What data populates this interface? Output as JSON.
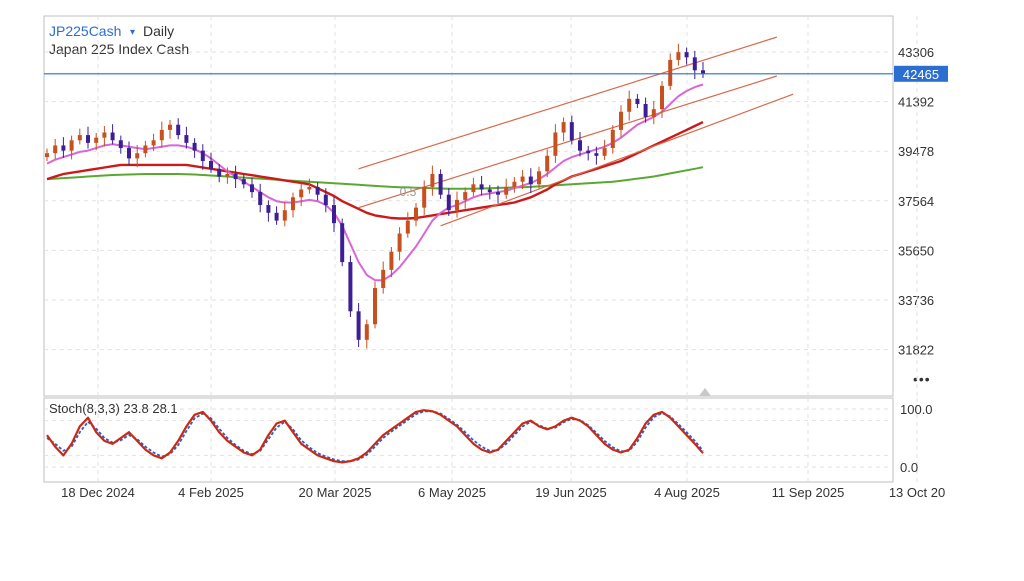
{
  "header": {
    "symbol": "JP225Cash",
    "caret": "▾",
    "timeframe": "Daily",
    "subtitle": "Japan 225 Index Cash"
  },
  "more_menu": "•••",
  "colors": {
    "candle_up": "#c8501e",
    "candle_down": "#3c1e96",
    "ma_short": "#d866d8",
    "ma_mid": "#cc1a1a",
    "ma_long": "#5aa832",
    "channel": "#d8694a",
    "current_line": "#2a6fd0",
    "stoch_k": "#cc2a10",
    "stoch_d": "#2a5ad8",
    "grid": "#e2e2e2"
  },
  "chart_data": {
    "type": "candlestick",
    "symbol": "JP225Cash",
    "interval": "Daily",
    "current_price": 42465,
    "y_ticks": [
      "43306",
      "41392",
      "39478",
      "37564",
      "35650",
      "33736",
      "31822"
    ],
    "x_ticks": [
      "18 Dec 2024",
      "4 Feb 2025",
      "20 Mar 2025",
      "6 May 2025",
      "19 Jun 2025",
      "4 Aug 2025",
      "11 Sep 2025",
      "13 Oct 20"
    ],
    "channel_label": "0.5",
    "series": [
      {
        "key": "close",
        "values": [
          39400,
          39700,
          39500,
          39900,
          40100,
          39800,
          40000,
          40200,
          39900,
          39600,
          39200,
          39400,
          39700,
          39900,
          40300,
          40500,
          40100,
          39800,
          39500,
          39100,
          38800,
          38500,
          38600,
          38400,
          38200,
          37900,
          37400,
          37100,
          36800,
          37200,
          37700,
          38000,
          38100,
          37800,
          37400,
          36700,
          35200,
          33300,
          32200,
          32800,
          34200,
          34900,
          35600,
          36300,
          36800,
          37300,
          38100,
          38600,
          37800,
          37200,
          37600,
          37900,
          38200,
          38000,
          37900,
          37800,
          38100,
          38300,
          38500,
          38200,
          38700,
          39300,
          40200,
          40600,
          39900,
          39500,
          39400,
          39300,
          39600,
          40300,
          41000,
          41500,
          41300,
          40800,
          41100,
          42000,
          43000,
          43300,
          43100,
          42600,
          42465
        ]
      }
    ],
    "overlays": [
      {
        "key": "ma_short",
        "values": [
          39000,
          39150,
          39250,
          39350,
          39450,
          39500,
          39600,
          39700,
          39750,
          39700,
          39650,
          39600,
          39550,
          39600,
          39650,
          39700,
          39700,
          39650,
          39550,
          39400,
          39200,
          38950,
          38700,
          38500,
          38300,
          38100,
          37900,
          37700,
          37550,
          37500,
          37500,
          37550,
          37600,
          37550,
          37400,
          37100,
          36600,
          35900,
          35200,
          34700,
          34500,
          34500,
          34700,
          35000,
          35400,
          35800,
          36300,
          36800,
          37100,
          37300,
          37400,
          37550,
          37700,
          37800,
          37850,
          37900,
          37950,
          38050,
          38150,
          38250,
          38400,
          38600,
          38850,
          39100,
          39250,
          39350,
          39450,
          39550,
          39650,
          39800,
          40000,
          40250,
          40500,
          40650,
          40800,
          41000,
          41300,
          41600,
          41800,
          41950,
          42050
        ]
      },
      {
        "key": "ma_mid",
        "values": [
          38400,
          38500,
          38600,
          38650,
          38700,
          38750,
          38800,
          38850,
          38900,
          38950,
          38950,
          38950,
          38950,
          38950,
          38950,
          38950,
          38950,
          38950,
          38900,
          38850,
          38800,
          38750,
          38700,
          38650,
          38600,
          38550,
          38500,
          38450,
          38400,
          38350,
          38300,
          38250,
          38200,
          38050,
          37900,
          37750,
          37550,
          37400,
          37250,
          37100,
          37000,
          36950,
          36900,
          36880,
          36880,
          36900,
          36950,
          37000,
          37050,
          37100,
          37150,
          37200,
          37250,
          37300,
          37350,
          37400,
          37450,
          37500,
          37600,
          37700,
          37850,
          38000,
          38200,
          38350,
          38500,
          38600,
          38700,
          38800,
          38900,
          39000,
          39100,
          39250,
          39400,
          39550,
          39700,
          39850,
          40000,
          40150,
          40300,
          40450,
          40600
        ]
      },
      {
        "key": "ma_long",
        "values": [
          38400,
          38420,
          38440,
          38460,
          38480,
          38500,
          38520,
          38540,
          38560,
          38570,
          38580,
          38590,
          38600,
          38600,
          38600,
          38600,
          38600,
          38590,
          38580,
          38560,
          38540,
          38520,
          38500,
          38480,
          38460,
          38440,
          38420,
          38400,
          38380,
          38360,
          38340,
          38320,
          38300,
          38280,
          38260,
          38240,
          38220,
          38200,
          38180,
          38160,
          38140,
          38120,
          38100,
          38090,
          38080,
          38070,
          38060,
          38050,
          38040,
          38030,
          38030,
          38030,
          38030,
          38040,
          38050,
          38060,
          38070,
          38080,
          38090,
          38100,
          38120,
          38140,
          38160,
          38180,
          38200,
          38220,
          38240,
          38260,
          38280,
          38300,
          38340,
          38380,
          38420,
          38460,
          38500,
          38560,
          38620,
          38680,
          38740,
          38800,
          38860
        ]
      },
      {
        "key": "channel_upper",
        "points": [
          [
            38,
            38800
          ],
          [
            89,
            43880
          ]
        ]
      },
      {
        "key": "channel_mid",
        "points": [
          [
            38,
            37300
          ],
          [
            89,
            42380
          ]
        ]
      },
      {
        "key": "channel_lower",
        "points": [
          [
            48,
            36600
          ],
          [
            91,
            41680
          ]
        ]
      },
      {
        "key": "last_price_line",
        "value": 42465
      }
    ],
    "indicator": {
      "name": "Stoch(8,3,3)",
      "k_value": "23.8",
      "d_value": "28.1",
      "ticks": [
        "100.0",
        "0.0"
      ],
      "k": [
        55,
        35,
        20,
        40,
        70,
        85,
        60,
        45,
        40,
        50,
        60,
        45,
        30,
        20,
        15,
        25,
        45,
        70,
        90,
        95,
        80,
        60,
        45,
        35,
        25,
        20,
        30,
        55,
        75,
        80,
        60,
        40,
        30,
        20,
        15,
        10,
        8,
        10,
        15,
        25,
        40,
        55,
        65,
        75,
        85,
        95,
        98,
        96,
        90,
        80,
        70,
        55,
        40,
        30,
        25,
        30,
        45,
        60,
        75,
        80,
        70,
        65,
        70,
        80,
        85,
        80,
        70,
        55,
        40,
        30,
        25,
        30,
        50,
        75,
        90,
        95,
        85,
        70,
        55,
        40,
        23.8
      ],
      "d": [
        50,
        40,
        28,
        35,
        60,
        78,
        66,
        50,
        42,
        46,
        55,
        48,
        35,
        25,
        18,
        22,
        38,
        62,
        84,
        92,
        84,
        66,
        50,
        38,
        28,
        22,
        28,
        48,
        68,
        78,
        65,
        46,
        34,
        24,
        18,
        13,
        10,
        10,
        13,
        21,
        35,
        50,
        61,
        71,
        81,
        91,
        96,
        96,
        92,
        83,
        73,
        60,
        46,
        35,
        28,
        29,
        40,
        55,
        70,
        78,
        72,
        66,
        68,
        77,
        83,
        81,
        72,
        59,
        45,
        34,
        27,
        28,
        44,
        68,
        86,
        93,
        87,
        74,
        60,
        45,
        28.1
      ]
    }
  }
}
